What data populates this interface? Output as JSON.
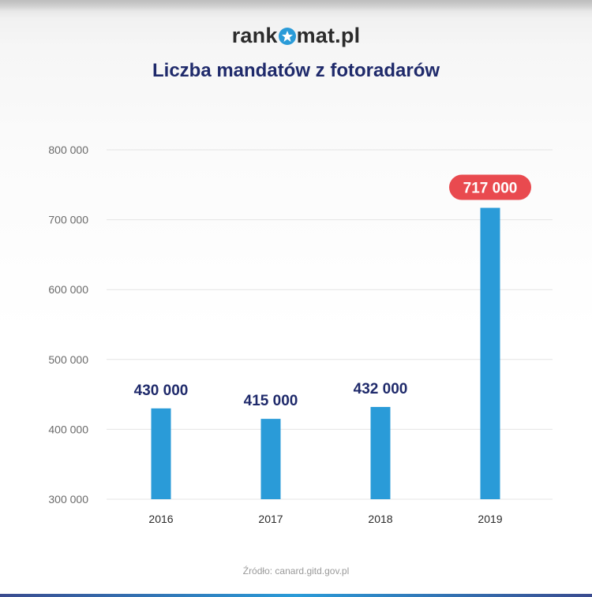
{
  "header": {
    "logo_left": "rank",
    "logo_right": "mat.pl",
    "logo_full": "rankomat.pl",
    "logo_accent_color": "#2a9bd8"
  },
  "chart_data": {
    "type": "bar",
    "title": "Liczba mandatów z fotoradarów",
    "categories": [
      "2016",
      "2017",
      "2018",
      "2019"
    ],
    "values": [
      430000,
      415000,
      432000,
      717000
    ],
    "data_labels": [
      "430 000",
      "415 000",
      "432 000",
      "717 000"
    ],
    "highlight_index": 3,
    "ylim": [
      300000,
      800000
    ],
    "yticks": [
      300000,
      400000,
      500000,
      600000,
      700000,
      800000
    ],
    "ytick_labels": [
      "300 000",
      "400 000",
      "500 000",
      "600 000",
      "700 000",
      "800 000"
    ],
    "xlabel": "",
    "ylabel": "",
    "grid": true,
    "legend": "none",
    "bar_color": "#2a9bd8",
    "highlight_label_color": "#e94a4f",
    "label_color": "#1f2a6b",
    "source": "Źródło: canard.gitd.gov.pl"
  }
}
